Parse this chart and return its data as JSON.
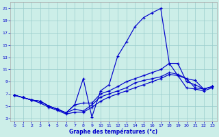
{
  "xlabel": "Graphe des températures (°c)",
  "bg_color": "#cceee8",
  "line_color": "#0000cc",
  "grid_color": "#99cccc",
  "xlim_min": -0.5,
  "xlim_max": 23.5,
  "ylim_min": 2.5,
  "ylim_max": 22.0,
  "xticks": [
    0,
    1,
    2,
    3,
    4,
    5,
    6,
    7,
    8,
    9,
    10,
    11,
    12,
    13,
    14,
    15,
    16,
    17,
    18,
    19,
    20,
    21,
    22,
    23
  ],
  "yticks": [
    3,
    5,
    7,
    9,
    11,
    13,
    15,
    17,
    19,
    21
  ],
  "line1_x": [
    0,
    1,
    2,
    3,
    4,
    5,
    6,
    7,
    8,
    9,
    10,
    11,
    12,
    13,
    14,
    15,
    16,
    17,
    18,
    19,
    20,
    21,
    22,
    23
  ],
  "line1_y": [
    6.8,
    6.4,
    6.0,
    5.8,
    5.0,
    4.5,
    3.9,
    5.2,
    9.5,
    3.2,
    7.5,
    8.5,
    13.2,
    15.5,
    18.0,
    19.5,
    20.3,
    21.0,
    12.0,
    10.0,
    9.5,
    9.2,
    7.8,
    8.2
  ],
  "line2_x": [
    0,
    1,
    2,
    3,
    4,
    5,
    6,
    7,
    8,
    9,
    10,
    11,
    12,
    13,
    14,
    15,
    16,
    17,
    18,
    19,
    20,
    21,
    22,
    23
  ],
  "line2_y": [
    6.8,
    6.4,
    6.0,
    5.8,
    5.0,
    4.5,
    3.9,
    4.5,
    4.2,
    5.2,
    6.5,
    7.0,
    7.5,
    8.0,
    8.8,
    9.2,
    9.5,
    9.8,
    10.5,
    10.2,
    9.5,
    8.0,
    7.8,
    8.2
  ],
  "line3_x": [
    0,
    1,
    2,
    3,
    4,
    5,
    6,
    7,
    8,
    9,
    10,
    11,
    12,
    13,
    14,
    15,
    16,
    17,
    18,
    19,
    20,
    21,
    22,
    23
  ],
  "line3_y": [
    6.8,
    6.4,
    6.0,
    5.8,
    5.0,
    4.5,
    3.9,
    5.2,
    5.5,
    5.5,
    7.0,
    7.5,
    8.2,
    9.0,
    9.5,
    10.0,
    10.5,
    11.0,
    12.0,
    12.0,
    9.0,
    8.5,
    7.8,
    8.2
  ],
  "line4_x": [
    0,
    1,
    2,
    3,
    4,
    5,
    6,
    7,
    8,
    9,
    10,
    11,
    12,
    13,
    14,
    15,
    16,
    17,
    18,
    19,
    20,
    21,
    22,
    23
  ],
  "line4_y": [
    6.8,
    6.4,
    6.0,
    5.5,
    4.8,
    4.3,
    3.7,
    4.0,
    4.0,
    4.8,
    5.8,
    6.5,
    7.0,
    7.5,
    8.0,
    8.5,
    9.0,
    9.5,
    10.2,
    10.0,
    8.0,
    7.8,
    7.5,
    8.0
  ]
}
